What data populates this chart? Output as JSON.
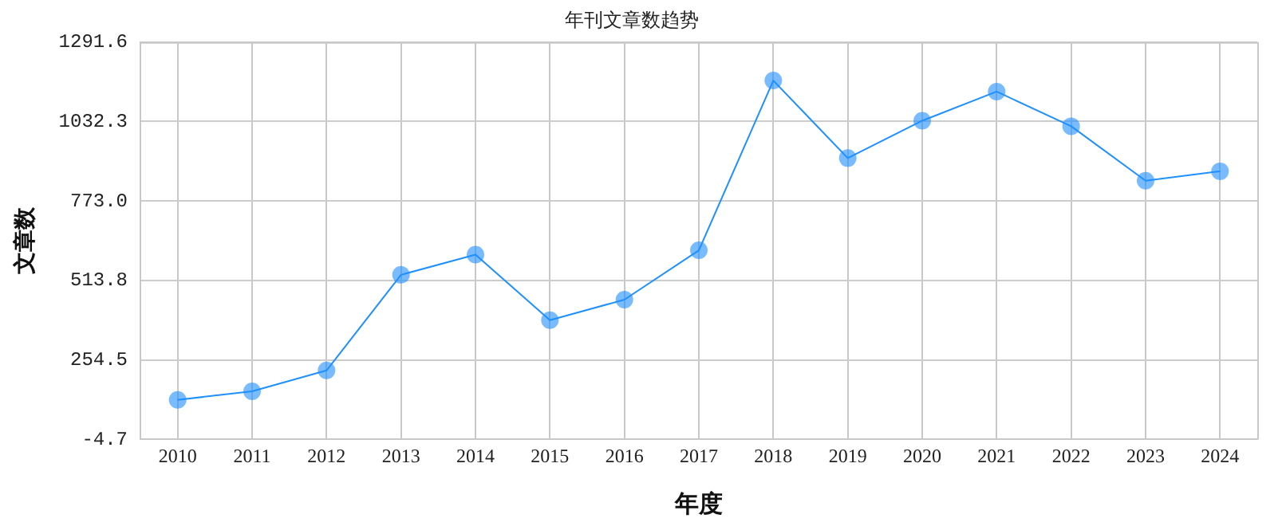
{
  "chart_data": {
    "type": "line",
    "title": "年刊文章数趋势",
    "xlabel": "年度",
    "ylabel": "文章数",
    "categories": [
      "2010",
      "2011",
      "2012",
      "2013",
      "2014",
      "2015",
      "2016",
      "2017",
      "2018",
      "2019",
      "2020",
      "2021",
      "2022",
      "2023",
      "2024"
    ],
    "series": [
      {
        "color": "#1e90ff",
        "values": [
          124,
          152,
          220,
          532,
          598,
          384,
          451,
          612,
          1166,
          913,
          1035,
          1130,
          1017,
          839,
          870
        ]
      }
    ],
    "ylim": [
      -4.7,
      1291.6
    ],
    "yticks": [
      {
        "value": -4.7,
        "label": "-4.7"
      },
      {
        "value": 254.5,
        "label": "254.5"
      },
      {
        "value": 513.8,
        "label": "513.8"
      },
      {
        "value": 773,
        "label": "773.0"
      },
      {
        "value": 1032.3,
        "label": "1032.3"
      },
      {
        "value": 1291.6,
        "label": "1291.6"
      }
    ],
    "grid": true,
    "legend": false,
    "marker": "circle",
    "line_style": "solid"
  }
}
